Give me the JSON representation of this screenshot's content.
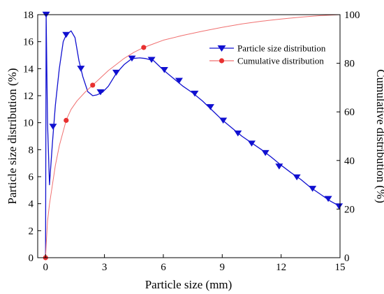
{
  "chart_data": {
    "type": "line",
    "xlabel": "Particle size (mm)",
    "ylabel_left": "Particle size distribution (%)",
    "ylabel_right": "Cumulative distribution (%)",
    "xlim": [
      -0.4,
      15
    ],
    "ylim_left": [
      0,
      18
    ],
    "ylim_right": [
      0,
      100
    ],
    "x_ticks": [
      0,
      3,
      6,
      9,
      12,
      15
    ],
    "y_left_ticks": [
      0,
      2,
      4,
      6,
      8,
      10,
      12,
      14,
      16,
      18
    ],
    "y_right_ticks": [
      0,
      20,
      40,
      60,
      80,
      100
    ],
    "grid": false,
    "legend_placement": "top-right",
    "series": [
      {
        "name": "Particle size distribution",
        "axis": "left",
        "color": "#1010d0",
        "marker": "triangle-down",
        "curve": [
          [
            0.0,
            0.0
          ],
          [
            0.03,
            18.0
          ],
          [
            0.1,
            10.0
          ],
          [
            0.2,
            5.4
          ],
          [
            0.35,
            8.5
          ],
          [
            0.5,
            11.3
          ],
          [
            0.7,
            14.0
          ],
          [
            0.9,
            16.0
          ],
          [
            1.05,
            16.5
          ],
          [
            1.3,
            16.8
          ],
          [
            1.5,
            16.3
          ],
          [
            1.7,
            14.6
          ],
          [
            1.9,
            13.4
          ],
          [
            2.15,
            12.3
          ],
          [
            2.4,
            12.0
          ],
          [
            2.6,
            12.05
          ],
          [
            2.9,
            12.25
          ],
          [
            3.2,
            12.7
          ],
          [
            3.6,
            13.65
          ],
          [
            4.0,
            14.3
          ],
          [
            4.4,
            14.75
          ],
          [
            4.8,
            14.8
          ],
          [
            5.1,
            14.75
          ],
          [
            5.5,
            14.6
          ],
          [
            6.0,
            13.9
          ],
          [
            6.5,
            13.3
          ],
          [
            7.0,
            12.7
          ],
          [
            7.5,
            12.2
          ],
          [
            8.0,
            11.6
          ],
          [
            8.5,
            10.9
          ],
          [
            9.0,
            10.2
          ],
          [
            9.5,
            9.6
          ],
          [
            10.0,
            9.0
          ],
          [
            10.5,
            8.5
          ],
          [
            11.0,
            8.0
          ],
          [
            11.5,
            7.45
          ],
          [
            12.0,
            6.85
          ],
          [
            12.5,
            6.3
          ],
          [
            13.0,
            5.8
          ],
          [
            13.5,
            5.2
          ],
          [
            14.0,
            4.7
          ],
          [
            14.5,
            4.2
          ],
          [
            15.0,
            3.8
          ]
        ],
        "markers": [
          [
            0.03,
            18.0
          ],
          [
            0.38,
            9.7
          ],
          [
            1.05,
            16.5
          ],
          [
            1.8,
            14.0
          ],
          [
            2.8,
            12.25
          ],
          [
            3.6,
            13.7
          ],
          [
            4.4,
            14.75
          ],
          [
            5.4,
            14.65
          ],
          [
            6.05,
            13.9
          ],
          [
            6.8,
            13.1
          ],
          [
            7.6,
            12.15
          ],
          [
            8.4,
            11.15
          ],
          [
            9.05,
            10.15
          ],
          [
            9.8,
            9.2
          ],
          [
            10.5,
            8.45
          ],
          [
            11.2,
            7.75
          ],
          [
            11.9,
            6.75
          ],
          [
            12.8,
            5.95
          ],
          [
            13.6,
            5.1
          ],
          [
            14.4,
            4.35
          ],
          [
            14.95,
            3.8
          ]
        ]
      },
      {
        "name": "Cumulative distribution",
        "axis": "right",
        "color": "#f07070",
        "marker": "circle",
        "curve": [
          [
            0.0,
            0.0
          ],
          [
            0.03,
            5.0
          ],
          [
            0.1,
            15.0
          ],
          [
            0.2,
            22.0
          ],
          [
            0.35,
            30.0
          ],
          [
            0.5,
            38.0
          ],
          [
            0.7,
            46.0
          ],
          [
            0.9,
            52.0
          ],
          [
            1.0,
            55.0
          ],
          [
            1.1,
            57.5
          ],
          [
            1.3,
            61.0
          ],
          [
            1.6,
            64.5
          ],
          [
            2.0,
            68.0
          ],
          [
            2.4,
            71.0
          ],
          [
            2.8,
            74.0
          ],
          [
            3.2,
            77.0
          ],
          [
            3.6,
            79.5
          ],
          [
            4.0,
            82.0
          ],
          [
            4.5,
            84.5
          ],
          [
            5.0,
            86.5
          ],
          [
            5.5,
            88.0
          ],
          [
            6.0,
            89.5
          ],
          [
            7.0,
            91.5
          ],
          [
            8.0,
            93.2
          ],
          [
            9.0,
            94.8
          ],
          [
            10.0,
            96.2
          ],
          [
            11.0,
            97.3
          ],
          [
            12.0,
            98.2
          ],
          [
            13.0,
            99.0
          ],
          [
            14.0,
            99.6
          ],
          [
            15.0,
            100.0
          ]
        ],
        "markers": [
          [
            0.0,
            0.0
          ],
          [
            1.05,
            56.5
          ],
          [
            2.4,
            71.0
          ],
          [
            5.0,
            86.5
          ]
        ]
      }
    ]
  }
}
